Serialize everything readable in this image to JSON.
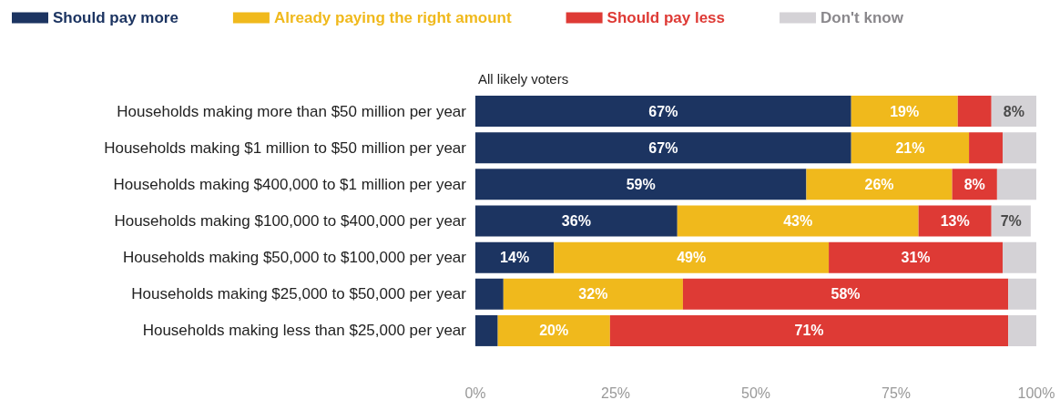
{
  "chart_data": {
    "type": "bar",
    "orientation": "horizontal",
    "stacked": true,
    "subtitle": "All likely voters",
    "legend": "top",
    "categories": [
      "Households making more than $50 million per year",
      "Households making $1 million to $50 million per year",
      "Households making $400,000 to $1 million per year",
      "Households making $100,000 to $400,000 per year",
      "Households making $50,000 to $100,000 per year",
      "Households making $25,000 to $50,000 per year",
      "Households making less than $25,000 per year"
    ],
    "series": [
      {
        "name": "Should pay more",
        "color": "#1c3461",
        "values": [
          67,
          67,
          59,
          36,
          14,
          5,
          4
        ],
        "value_labels": [
          "67%",
          "67%",
          "59%",
          "36%",
          "14%",
          null,
          null
        ]
      },
      {
        "name": "Already paying the right amount",
        "color": "#f0b91c",
        "values": [
          19,
          21,
          26,
          43,
          49,
          32,
          20
        ],
        "value_labels": [
          "19%",
          "21%",
          "26%",
          "43%",
          "49%",
          "32%",
          "20%"
        ]
      },
      {
        "name": "Should pay less",
        "color": "#de3a35",
        "values": [
          6,
          6,
          8,
          13,
          31,
          58,
          71
        ],
        "value_labels": [
          null,
          null,
          "8%",
          "13%",
          "31%",
          "58%",
          "71%"
        ]
      },
      {
        "name": "Don't know",
        "color": "#d4d2d6",
        "values": [
          8,
          6,
          7,
          7,
          6,
          5,
          5
        ],
        "value_labels": [
          "8%",
          null,
          null,
          "7%",
          null,
          null,
          null
        ]
      }
    ],
    "xlim": [
      0,
      100
    ],
    "xticks": [
      {
        "value": 0,
        "label": "0%"
      },
      {
        "value": 25,
        "label": "25%"
      },
      {
        "value": 50,
        "label": "50%"
      },
      {
        "value": 75,
        "label": "75%"
      },
      {
        "value": 100,
        "label": "100%"
      }
    ],
    "grid": false
  }
}
